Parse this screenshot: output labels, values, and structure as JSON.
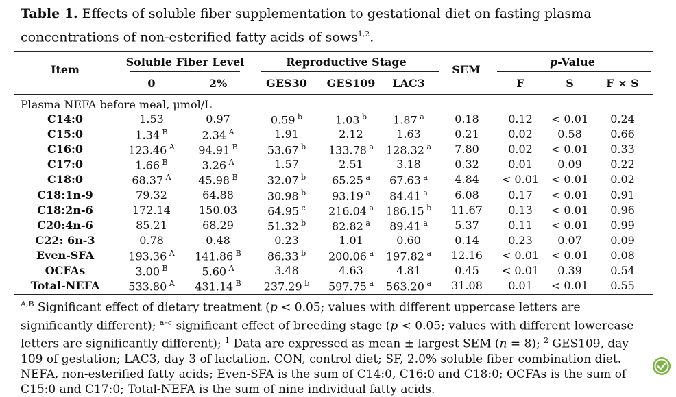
{
  "caption": {
    "label": "Table 1.",
    "text": "Effects of soluble fiber supplementation to gestational diet on fasting plasma concentrations of non-esterified fatty acids of sows",
    "sup": "1,2",
    "end": "."
  },
  "header": {
    "item": "Item",
    "group_fiber": "Soluble Fiber Level",
    "group_stage": "Reproductive Stage",
    "sem": "SEM",
    "pvalue_p": "p",
    "pvalue_rest": "-Value",
    "cols": [
      "0",
      "2%",
      "GES30",
      "GES109",
      "LAC3",
      "F",
      "S",
      "F × S"
    ]
  },
  "section_label": "Plasma NEFA before meal, μmol/L",
  "rows": [
    {
      "name": "C14:0",
      "cells": [
        [
          "1.53",
          ""
        ],
        [
          "0.97",
          ""
        ],
        [
          "0.59",
          "b"
        ],
        [
          "1.03",
          "b"
        ],
        [
          "1.87",
          "a"
        ],
        [
          "0.18",
          ""
        ],
        [
          "0.12",
          ""
        ],
        [
          "< 0.01",
          ""
        ],
        [
          "0.24",
          ""
        ]
      ]
    },
    {
      "name": "C15:0",
      "cells": [
        [
          "1.34",
          "B"
        ],
        [
          "2.34",
          "A"
        ],
        [
          "1.91",
          ""
        ],
        [
          "2.12",
          ""
        ],
        [
          "1.63",
          ""
        ],
        [
          "0.21",
          ""
        ],
        [
          "0.02",
          ""
        ],
        [
          "0.58",
          ""
        ],
        [
          "0.66",
          ""
        ]
      ]
    },
    {
      "name": "C16:0",
      "cells": [
        [
          "123.46",
          "A"
        ],
        [
          "94.91",
          "B"
        ],
        [
          "53.67",
          "b"
        ],
        [
          "133.78",
          "a"
        ],
        [
          "128.32",
          "a"
        ],
        [
          "7.80",
          ""
        ],
        [
          "0.02",
          ""
        ],
        [
          "< 0.01",
          ""
        ],
        [
          "0.33",
          ""
        ]
      ]
    },
    {
      "name": "C17:0",
      "cells": [
        [
          "1.66",
          "B"
        ],
        [
          "3.26",
          "A"
        ],
        [
          "1.57",
          ""
        ],
        [
          "2.51",
          ""
        ],
        [
          "3.18",
          ""
        ],
        [
          "0.32",
          ""
        ],
        [
          "0.01",
          ""
        ],
        [
          "0.09",
          ""
        ],
        [
          "0.22",
          ""
        ]
      ]
    },
    {
      "name": "C18:0",
      "cells": [
        [
          "68.37",
          "A"
        ],
        [
          "45.98",
          "B"
        ],
        [
          "32.07",
          "b"
        ],
        [
          "65.25",
          "a"
        ],
        [
          "67.63",
          "a"
        ],
        [
          "4.84",
          ""
        ],
        [
          "< 0.01",
          ""
        ],
        [
          "< 0.01",
          ""
        ],
        [
          "0.02",
          ""
        ]
      ]
    },
    {
      "name": "C18:1n-9",
      "cells": [
        [
          "79.32",
          ""
        ],
        [
          "64.88",
          ""
        ],
        [
          "30.98",
          "b"
        ],
        [
          "93.19",
          "a"
        ],
        [
          "84.41",
          "a"
        ],
        [
          "6.08",
          ""
        ],
        [
          "0.17",
          ""
        ],
        [
          "< 0.01",
          ""
        ],
        [
          "0.91",
          ""
        ]
      ]
    },
    {
      "name": "C18:2n-6",
      "cells": [
        [
          "172.14",
          ""
        ],
        [
          "150.03",
          ""
        ],
        [
          "64.95",
          "c"
        ],
        [
          "216.04",
          "a"
        ],
        [
          "186.15",
          "b"
        ],
        [
          "11.67",
          ""
        ],
        [
          "0.13",
          ""
        ],
        [
          "< 0.01",
          ""
        ],
        [
          "0.96",
          ""
        ]
      ]
    },
    {
      "name": "C20:4n-6",
      "cells": [
        [
          "85.21",
          ""
        ],
        [
          "68.29",
          ""
        ],
        [
          "51.32",
          "b"
        ],
        [
          "82.82",
          "a"
        ],
        [
          "89.41",
          "a"
        ],
        [
          "5.37",
          ""
        ],
        [
          "0.11",
          ""
        ],
        [
          "< 0.01",
          ""
        ],
        [
          "0.99",
          ""
        ]
      ]
    },
    {
      "name": "C22: 6n-3",
      "cells": [
        [
          "0.78",
          ""
        ],
        [
          "0.48",
          ""
        ],
        [
          "0.23",
          ""
        ],
        [
          "1.01",
          ""
        ],
        [
          "0.60",
          ""
        ],
        [
          "0.14",
          ""
        ],
        [
          "0.23",
          ""
        ],
        [
          "0.07",
          ""
        ],
        [
          "0.09",
          ""
        ]
      ]
    },
    {
      "name": "Even-SFA",
      "cells": [
        [
          "193.36",
          "A"
        ],
        [
          "141.86",
          "B"
        ],
        [
          "86.33",
          "b"
        ],
        [
          "200.06",
          "a"
        ],
        [
          "197.82",
          "a"
        ],
        [
          "12.16",
          ""
        ],
        [
          "< 0.01",
          ""
        ],
        [
          "< 0.01",
          ""
        ],
        [
          "0.08",
          ""
        ]
      ]
    },
    {
      "name": "OCFAs",
      "cells": [
        [
          "3.00",
          "B"
        ],
        [
          "5.60",
          "A"
        ],
        [
          "3.48",
          ""
        ],
        [
          "4.63",
          ""
        ],
        [
          "4.81",
          ""
        ],
        [
          "0.45",
          ""
        ],
        [
          "< 0.01",
          ""
        ],
        [
          "0.39",
          ""
        ],
        [
          "0.54",
          ""
        ]
      ]
    },
    {
      "name": "Total-NEFA",
      "cells": [
        [
          "533.80",
          "A"
        ],
        [
          "431.14",
          "B"
        ],
        [
          "237.29",
          "b"
        ],
        [
          "597.75",
          "a"
        ],
        [
          "563.20",
          "a"
        ],
        [
          "31.08",
          ""
        ],
        [
          "0.01",
          ""
        ],
        [
          "< 0.01",
          ""
        ],
        [
          "0.55",
          ""
        ]
      ]
    }
  ],
  "footnote": {
    "sup1": "A,B",
    "t1": " Significant effect of dietary treatment (",
    "p1": "p",
    "t2": " < 0.05; values with different uppercase letters are significantly different);",
    "sup2": "a–c",
    "t3": " significant effect of breeding stage (",
    "p2": "p",
    "t4": " < 0.05; values with different lowercase letters are significantly different);",
    "sup3": "1",
    "t5": "Data are expressed as mean ± largest SEM (",
    "n": "n",
    "t6": " = 8);",
    "sup4": "2",
    "t7": " GES109, day 109 of gestation; LAC3, day 3 of lactation. CON, control diet; SF, 2.0% soluble fiber combination diet. NEFA, non-esterified fatty acids; Even-SFA is the sum of C14:0, C16:0 and C18:0; OCFAs is the sum of C15:0 and C17:0; Total-NEFA is the sum of nine individual fatty acids."
  }
}
